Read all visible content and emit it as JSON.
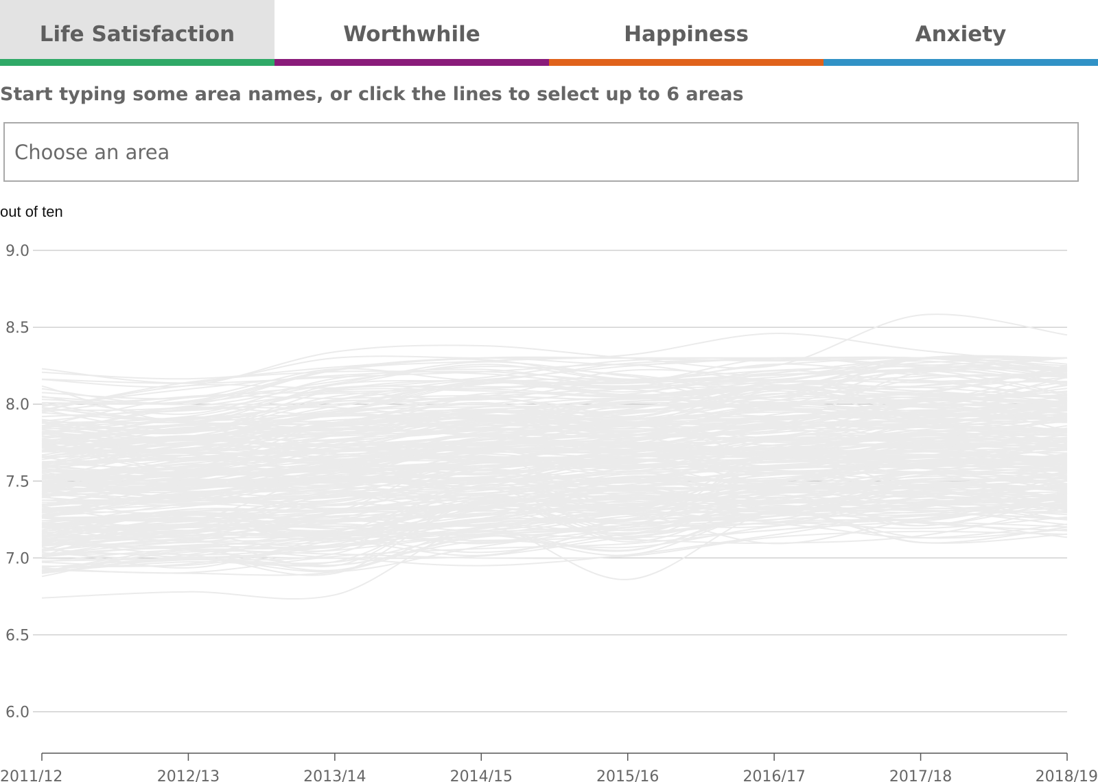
{
  "tabs": [
    {
      "label": "Life Satisfaction",
      "color": "#2fa967",
      "active": true
    },
    {
      "label": "Worthwhile",
      "color": "#8a1b7a",
      "active": false
    },
    {
      "label": "Happiness",
      "color": "#e0621b",
      "active": false
    },
    {
      "label": "Anxiety",
      "color": "#3192c6",
      "active": false
    }
  ],
  "prompt": "Start typing some area names, or click the lines to select up to 6 areas",
  "search": {
    "placeholder": "Choose an area",
    "value": ""
  },
  "chart": {
    "y_unit_label": "out of ten"
  },
  "colors": {
    "text": "#666666",
    "grid": "#c8c8c8",
    "area_lines": "#ebebeb",
    "active_tab_bg": "#e3e3e3"
  },
  "chart_data": {
    "type": "line",
    "title": "",
    "xlabel": "",
    "ylabel": "out of ten",
    "x": [
      "2011/12",
      "2012/13",
      "2013/14",
      "2014/15",
      "2015/16",
      "2016/17",
      "2017/18",
      "2018/19"
    ],
    "y_ticks": [
      "6.0",
      "6.5",
      "7.0",
      "7.5",
      "8.0",
      "8.5",
      "9.0"
    ],
    "ylim": [
      5.8,
      9.0
    ],
    "grid": true,
    "legend": "none",
    "series_note": "hundreds of unselected area lines, all drawn in light grey",
    "series": [
      {
        "values": [
          7.5,
          7.54,
          7.58,
          7.63,
          7.66,
          7.68,
          7.7,
          7.71
        ]
      },
      {
        "values": [
          8.16,
          8.12,
          8.34,
          8.38,
          8.3,
          8.25,
          8.58,
          8.45
        ]
      },
      {
        "values": [
          6.74,
          6.78,
          6.76,
          7.2,
          6.86,
          7.3,
          7.1,
          7.2
        ]
      },
      {
        "values": [
          8.1,
          8.0,
          8.22,
          8.28,
          8.32,
          8.46,
          8.35,
          8.26
        ]
      },
      {
        "values": [
          6.88,
          7.05,
          7.0,
          6.95,
          7.02,
          7.15,
          7.28,
          7.25
        ]
      },
      {
        "values": [
          7.9,
          7.82,
          7.95,
          8.15,
          8.08,
          8.2,
          8.28,
          8.18
        ]
      },
      {
        "values": [
          7.05,
          7.12,
          7.15,
          7.22,
          7.3,
          7.35,
          7.4,
          7.3
        ]
      },
      {
        "values": [
          7.7,
          7.85,
          7.8,
          7.95,
          7.9,
          8.05,
          8.12,
          8.22
        ]
      },
      {
        "values": [
          7.2,
          7.1,
          7.25,
          7.35,
          7.4,
          7.3,
          7.45,
          7.5
        ]
      },
      {
        "values": [
          7.4,
          7.45,
          7.5,
          7.55,
          7.6,
          7.62,
          7.65,
          7.7
        ]
      },
      {
        "values": [
          7.6,
          7.65,
          7.7,
          7.75,
          7.8,
          7.82,
          7.85,
          7.9
        ]
      },
      {
        "values": [
          7.3,
          7.35,
          7.4,
          7.45,
          7.5,
          7.55,
          7.6,
          7.58
        ]
      },
      {
        "values": [
          7.85,
          7.9,
          8.0,
          8.05,
          8.1,
          8.12,
          8.18,
          8.2
        ]
      },
      {
        "values": [
          7.1,
          7.2,
          7.25,
          7.28,
          7.35,
          7.42,
          7.45,
          7.4
        ]
      },
      {
        "values": [
          7.95,
          8.05,
          8.08,
          8.1,
          8.15,
          8.22,
          8.25,
          8.3
        ]
      },
      {
        "values": [
          6.98,
          7.0,
          7.05,
          7.15,
          7.2,
          7.25,
          7.3,
          7.35
        ]
      }
    ]
  }
}
